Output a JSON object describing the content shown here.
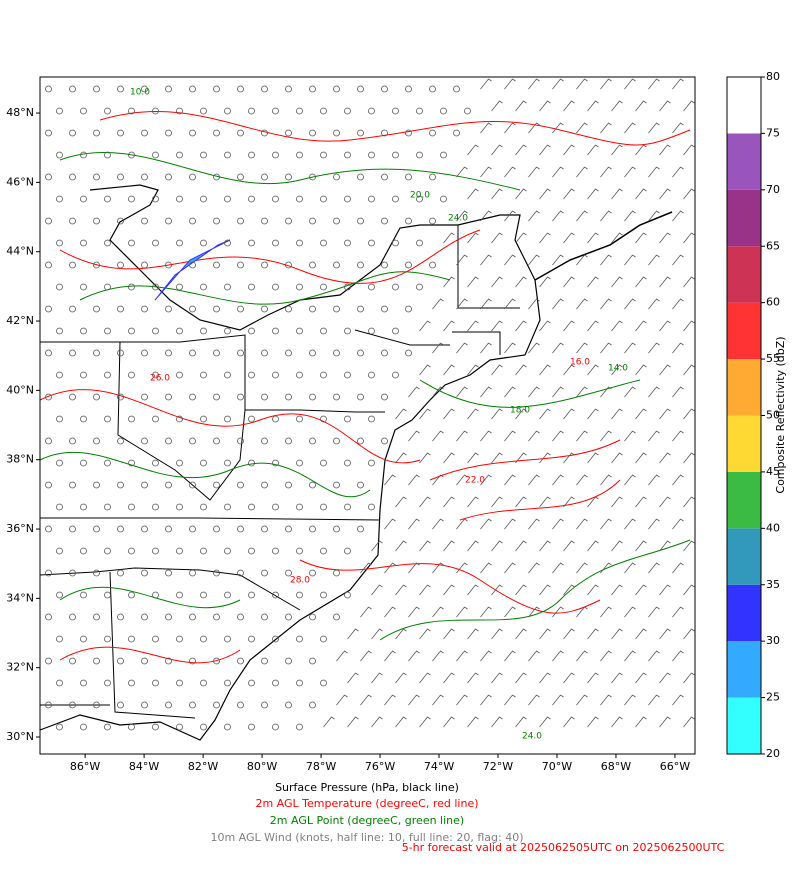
{
  "map": {
    "xlim": [
      -87.53,
      -65.32
    ],
    "ylim": [
      29.51,
      49.04
    ],
    "xticks": [
      {
        "value": -86,
        "label": "86°W"
      },
      {
        "value": -84,
        "label": "84°W"
      },
      {
        "value": -82,
        "label": "82°W"
      },
      {
        "value": -80,
        "label": "80°W"
      },
      {
        "value": -78,
        "label": "78°W"
      },
      {
        "value": -76,
        "label": "76°W"
      },
      {
        "value": -74,
        "label": "74°W"
      },
      {
        "value": -72,
        "label": "72°W"
      },
      {
        "value": -70,
        "label": "70°W"
      },
      {
        "value": -68,
        "label": "68°W"
      },
      {
        "value": -66,
        "label": "66°W"
      }
    ],
    "yticks": [
      {
        "value": 30,
        "label": "30°N"
      },
      {
        "value": 32,
        "label": "32°N"
      },
      {
        "value": 34,
        "label": "34°N"
      },
      {
        "value": 36,
        "label": "36°N"
      },
      {
        "value": 38,
        "label": "38°N"
      },
      {
        "value": 40,
        "label": "40°N"
      },
      {
        "value": 42,
        "label": "42°N"
      },
      {
        "value": 44,
        "label": "44°N"
      },
      {
        "value": 46,
        "label": "46°N"
      },
      {
        "value": 48,
        "label": "48°N"
      }
    ],
    "contour_labels": [
      {
        "value": 26,
        "label": "26.0",
        "color": "#ff0000"
      },
      {
        "value": 24,
        "label": "24.0",
        "color": "#008000"
      },
      {
        "value": 20,
        "label": "20.0",
        "color": "#008000"
      },
      {
        "value": 16,
        "label": "16.0",
        "color": "#ff0000"
      },
      {
        "value": 14,
        "label": "14.0",
        "color": "#008000"
      },
      {
        "value": 18,
        "label": "18.0",
        "color": "#008000"
      },
      {
        "value": 28,
        "label": "28.0",
        "color": "#ff0000"
      },
      {
        "value": 22,
        "label": "22.0",
        "color": "#ff0000"
      },
      {
        "value": 10,
        "label": "10.0",
        "color": "#008000"
      },
      {
        "value": 24,
        "label": "24.0",
        "color": "#008000"
      }
    ]
  },
  "colorbar": {
    "label": "Composite Reflectivity (dbZ)",
    "lim": [
      20,
      80
    ],
    "ticks": [
      20,
      25,
      30,
      35,
      40,
      45,
      50,
      55,
      60,
      65,
      70,
      75,
      80
    ],
    "colors": [
      "#33ffff",
      "#33aaff",
      "#3333ff",
      "#3399bb",
      "#3bbb44",
      "#ffd933",
      "#ffaa33",
      "#ff3333",
      "#cc3355",
      "#993388",
      "#9955bb",
      "#ffffff"
    ]
  },
  "captions": [
    {
      "text": "Surface Pressure (hPa, black line)",
      "color": "#000000"
    },
    {
      "text": "2m AGL Temperature (degreeC, red line)",
      "color": "#ff0000"
    },
    {
      "text": "2m AGL Point (degreeC, green line)",
      "color": "#008000"
    },
    {
      "text": "10m AGL Wind (knots, half line: 10, full line: 20, flag: 40)",
      "color": "#808080"
    }
  ],
  "valid_text": {
    "text": "5-hr forecast valid at 2025062505UTC on 2025062500UTC",
    "color": "#ff0000"
  }
}
